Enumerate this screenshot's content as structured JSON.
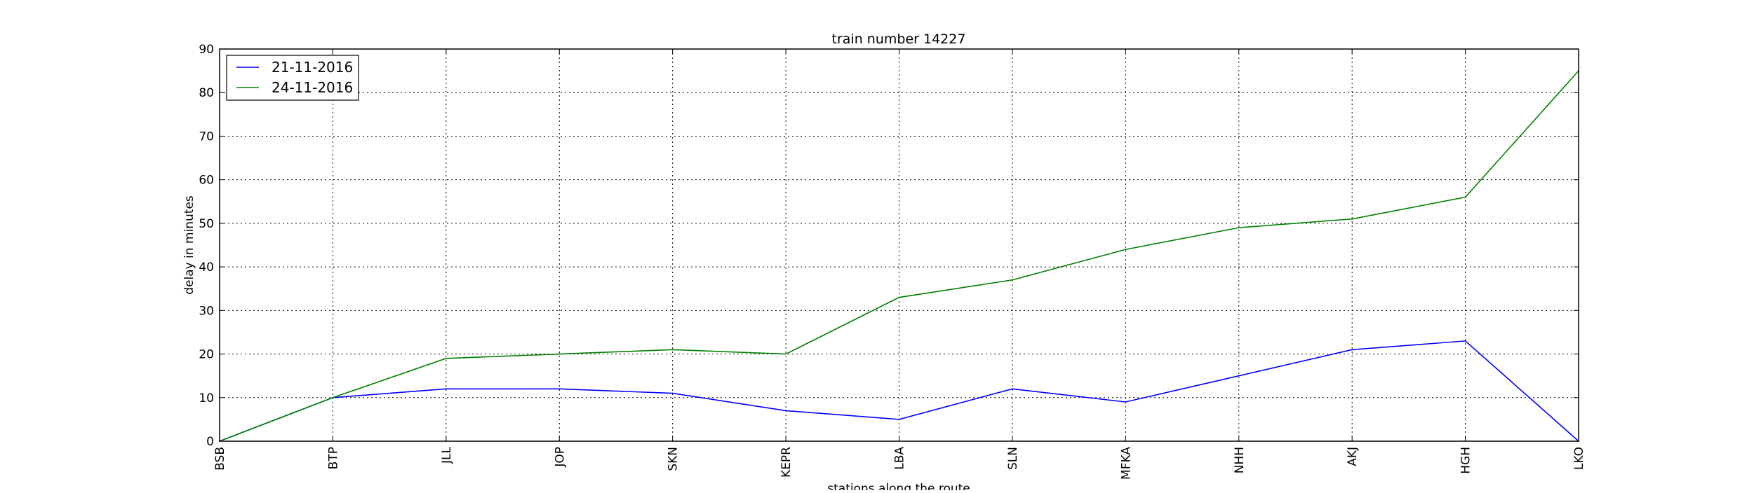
{
  "chart_data": {
    "type": "line",
    "title": "train number 14227",
    "xlabel": "stations along the route",
    "ylabel": "delay in minutes",
    "categories": [
      "BSB",
      "BTP",
      "JLL",
      "JOP",
      "SKN",
      "KEPR",
      "LBA",
      "SLN",
      "MFKA",
      "NHH",
      "AKJ",
      "HGH",
      "LKO"
    ],
    "ylim": [
      0,
      90
    ],
    "yticks": [
      0,
      10,
      20,
      30,
      40,
      50,
      60,
      70,
      80,
      90
    ],
    "grid": true,
    "legend_position": "top-left",
    "series": [
      {
        "name": "21-11-2016",
        "color": "#0000ff",
        "values": [
          0,
          10,
          12,
          12,
          11,
          7,
          5,
          12,
          9,
          15,
          21,
          23,
          0
        ]
      },
      {
        "name": "24-11-2016",
        "color": "#008000",
        "values": [
          0,
          10,
          19,
          20,
          21,
          20,
          33,
          37,
          44,
          49,
          51,
          56,
          85
        ]
      }
    ]
  }
}
